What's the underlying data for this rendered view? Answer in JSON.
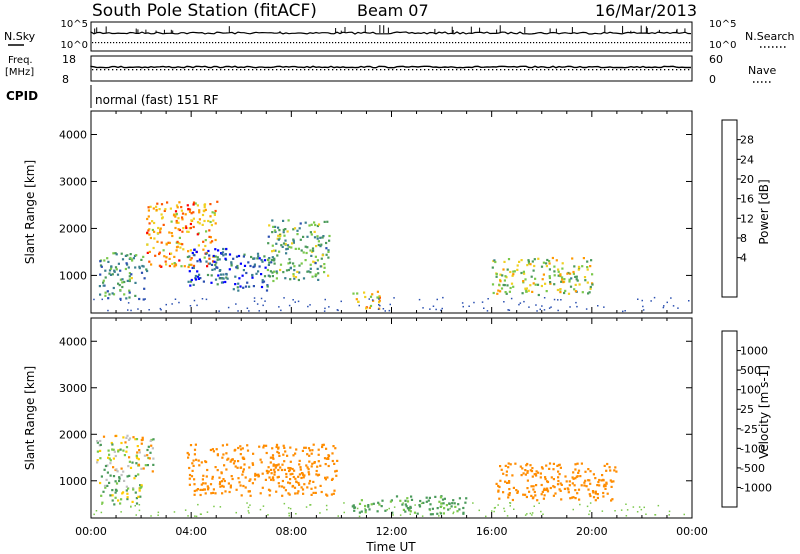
{
  "header": {
    "station": "South Pole Station (fitACF)",
    "beam": "Beam 07",
    "date": "16/Mar/2013"
  },
  "top_panels": {
    "nsky_label": "N.Sky",
    "nsearch_label": "N.Search",
    "noise_ticks": [
      "10^5",
      "10^0"
    ],
    "freq_label_line1": "Freq.",
    "freq_label_line2": "[MHz]",
    "freq_ticks": [
      "18",
      "8"
    ],
    "nave_label": "Nave",
    "nave_ticks": [
      "60",
      "0"
    ],
    "cpid_label": "CPID",
    "cpid_text": "normal (fast) 151 RF"
  },
  "colors": {
    "power_scale": [
      "#0000ff",
      "#2a4fb0",
      "#3a7f8f",
      "#4a9a5a",
      "#7ac84a",
      "#f0d020",
      "#ff9a00",
      "#ff5500",
      "#ff0000"
    ],
    "velocity_scale": [
      "#2a4fb0",
      "#3a7f8f",
      "#4a9a5a",
      "#7ac84a",
      "#c0c0c0",
      "#ffcc00",
      "#ff8c00",
      "#ff5500",
      "#ff0000"
    ]
  },
  "chart_data": [
    {
      "type": "heatmap",
      "panel": "power",
      "xlabel": "",
      "ylabel": "Slant Range [km]",
      "xlim_hours": [
        0,
        24
      ],
      "ylim": [
        200,
        4500
      ],
      "yticks": [
        "1000",
        "2000",
        "3000",
        "4000"
      ],
      "colorbar_label": "Power [dB]",
      "colorbar_ticks": [
        "28",
        "24",
        "20",
        "16",
        "12",
        "8",
        "4"
      ],
      "colorbar_range": [
        0,
        30
      ],
      "features": [
        {
          "t0": 0.3,
          "t1": 2.2,
          "r0": 500,
          "r1": 1500,
          "level": 20
        },
        {
          "t0": 2.2,
          "t1": 5.0,
          "r0": 1200,
          "r1": 2600,
          "level": 8
        },
        {
          "t0": 3.8,
          "t1": 5.4,
          "r0": 800,
          "r1": 1600,
          "level": 26
        },
        {
          "t0": 5.0,
          "t1": 7.3,
          "r0": 700,
          "r1": 1500,
          "level": 24
        },
        {
          "t0": 7.0,
          "t1": 9.5,
          "r0": 900,
          "r1": 2200,
          "level": 18
        },
        {
          "t0": 10.4,
          "t1": 11.5,
          "r0": 300,
          "r1": 700,
          "level": 10
        },
        {
          "t0": 16.0,
          "t1": 20.0,
          "r0": 600,
          "r1": 1400,
          "level": 14
        }
      ]
    },
    {
      "type": "heatmap",
      "panel": "velocity",
      "xlabel": "Time UT",
      "ylabel": "Slant Range [km]",
      "xlim_hours": [
        0,
        24
      ],
      "ylim": [
        200,
        4500
      ],
      "xticks": [
        "00:00",
        "04:00",
        "08:00",
        "12:00",
        "16:00",
        "20:00",
        "00:00"
      ],
      "yticks": [
        "1000",
        "2000",
        "3000",
        "4000"
      ],
      "colorbar_label": "Velocity [m s-1]",
      "colorbar_ticks": [
        "1000",
        "500",
        "100",
        "25",
        "-25",
        "-100",
        "-500",
        "-1000"
      ],
      "features": [
        {
          "t0": 0.2,
          "t1": 2.5,
          "r0": 1200,
          "r1": 2000,
          "vel": 0
        },
        {
          "t0": 0.3,
          "t1": 2.0,
          "r0": 500,
          "r1": 1200,
          "vel": 80
        },
        {
          "t0": 3.8,
          "t1": 9.8,
          "r0": 700,
          "r1": 1800,
          "vel": -300
        },
        {
          "t0": 10.4,
          "t1": 15.0,
          "r0": 300,
          "r1": 700,
          "vel": 200
        },
        {
          "t0": 16.0,
          "t1": 21.0,
          "r0": 600,
          "r1": 1400,
          "vel": -300
        }
      ]
    }
  ]
}
